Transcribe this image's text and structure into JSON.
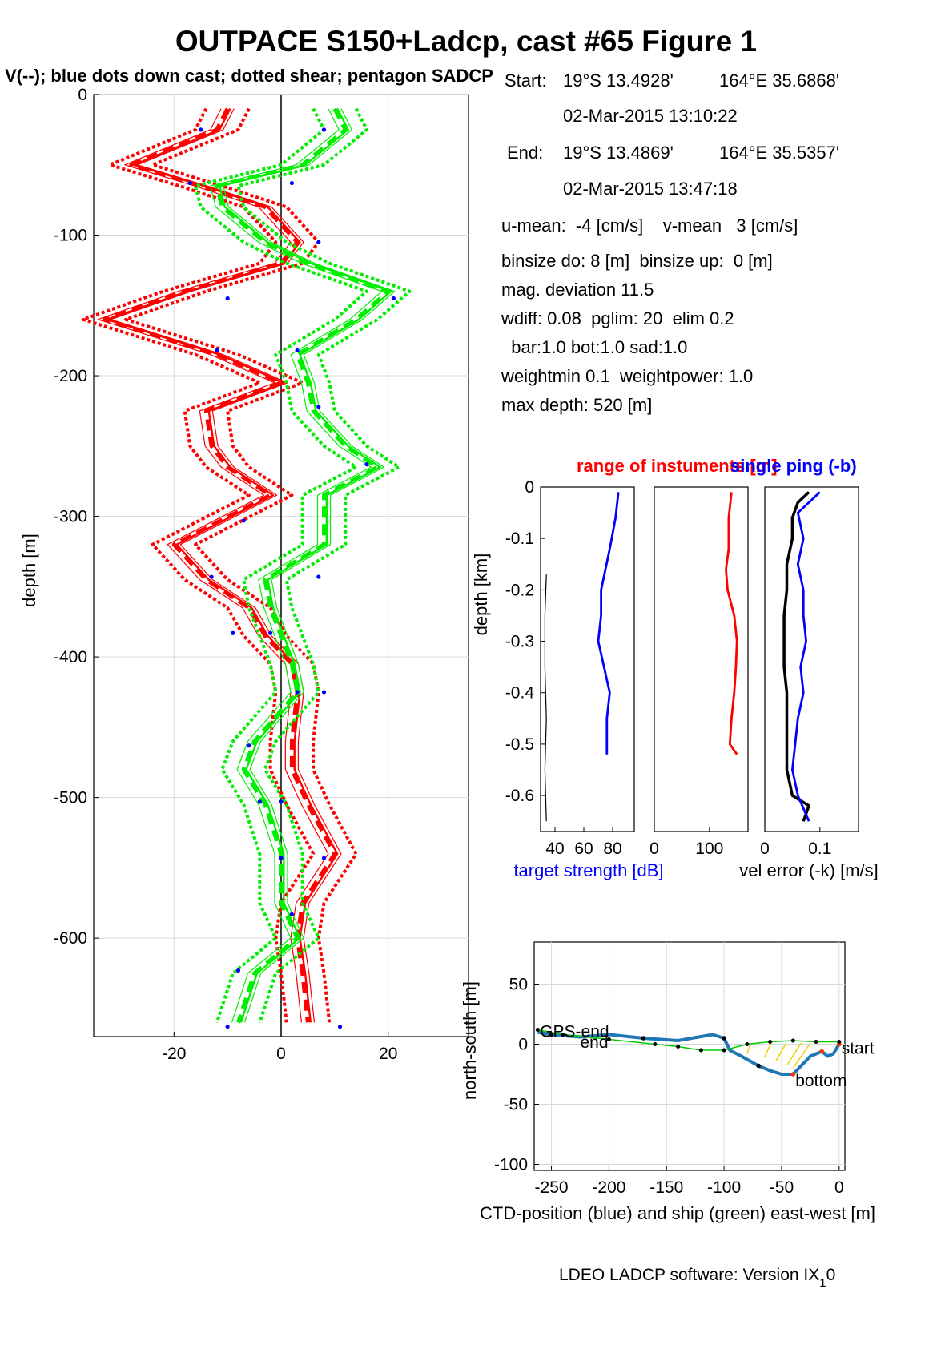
{
  "header": {
    "title": "OUTPACE S150+Ladcp, cast #65  Figure 1",
    "subtitle": "V(--); blue dots down cast; dotted shear; pentagon SADCP"
  },
  "info": {
    "start_label": "Start:",
    "start_lat": "19°S 13.4928'",
    "start_lon": "164°E 35.6868'",
    "start_time": "02-Mar-2015 13:10:22",
    "end_label": "End:",
    "end_lat": "19°S 13.4869'",
    "end_lon": "164°E 35.5357'",
    "end_time": "02-Mar-2015 13:47:18",
    "means": "u-mean:  -4 [cm/s]    v-mean   3 [cm/s]",
    "binsize": "binsize do: 8 [m]  binsize up:  0 [m]",
    "magdev": "mag. deviation 11.5",
    "wdiff": "wdiff: 0.08  pglim: 20  elim 0.2",
    "weights_bar": "  bar:1.0 bot:1.0 sad:1.0",
    "weightmin": "weightmin 0.1  weightpower: 1.0",
    "maxdepth": "max depth: 520 [m]"
  },
  "footer": {
    "text": "LDEO LADCP software: Version IX",
    "sub": "1",
    "tail": "0"
  },
  "colors": {
    "u": "#ff0000",
    "v": "#00ee00",
    "dots": "#0000ff",
    "ts": "#0000ff",
    "black": "#000000"
  },
  "chart_data": [
    {
      "type": "line",
      "id": "velocity_profile",
      "ylabel": "depth [m]",
      "xlabel": "",
      "xlim": [
        -35,
        35
      ],
      "ylim": [
        -670,
        0
      ],
      "x_ticks": [
        "-20",
        "0",
        "20"
      ],
      "y_ticks": [
        "0",
        "-100",
        "-200",
        "-300",
        "-400",
        "-500",
        "-600"
      ],
      "grid": true,
      "series": [
        {
          "color": "red",
          "depth": [
            -10,
            -25,
            -50,
            -65,
            -80,
            -105,
            -120,
            -140,
            -160,
            -185,
            -205,
            -225,
            -250,
            -265,
            -285,
            -320,
            -345,
            -365,
            -385,
            -405,
            -425,
            -460,
            -480,
            -505,
            -540,
            -575,
            -600,
            -625,
            -660
          ],
          "values": [
            -10,
            -12,
            -28,
            -15,
            -3,
            3,
            0,
            -18,
            -33,
            -12,
            0,
            -14,
            -13,
            -10,
            -2,
            -20,
            -14,
            -6,
            -3,
            2,
            3,
            2,
            2,
            5,
            10,
            4,
            3,
            4,
            5
          ]
        },
        {
          "color": "green",
          "depth": [
            -10,
            -25,
            -50,
            -65,
            -80,
            -105,
            -120,
            -140,
            -160,
            -185,
            -205,
            -225,
            -250,
            -265,
            -285,
            -320,
            -345,
            -365,
            -385,
            -405,
            -425,
            -460,
            -480,
            -505,
            -540,
            -575,
            -600,
            -625,
            -660
          ],
          "values": [
            10,
            12,
            4,
            -12,
            -11,
            -3,
            5,
            20,
            14,
            3,
            5,
            6,
            12,
            18,
            8,
            8,
            -3,
            -2,
            0,
            2,
            3,
            -5,
            -7,
            -3,
            0,
            0,
            3,
            -5,
            -8
          ]
        }
      ],
      "down_cast_dots_u": [
        [
          -15,
          -25
        ],
        [
          -17,
          -63
        ],
        [
          -10,
          -145
        ],
        [
          -12,
          -182
        ],
        [
          -7,
          -303
        ],
        [
          -13,
          -343
        ],
        [
          -9,
          -383
        ],
        [
          3,
          -425
        ],
        [
          -6,
          -463
        ],
        [
          -4,
          -503
        ],
        [
          8,
          -543
        ],
        [
          2,
          -583
        ],
        [
          -8,
          -623
        ],
        [
          11,
          -663
        ]
      ],
      "down_cast_dots_v": [
        [
          8,
          -25
        ],
        [
          2,
          -63
        ],
        [
          7,
          -105
        ],
        [
          21,
          -145
        ],
        [
          3,
          -182
        ],
        [
          7,
          -222
        ],
        [
          16,
          -263
        ],
        [
          7,
          -343
        ],
        [
          -2,
          -383
        ],
        [
          8,
          -425
        ],
        [
          0,
          -503
        ],
        [
          0,
          -543
        ],
        [
          -10,
          -663
        ]
      ]
    },
    {
      "type": "line",
      "id": "target_strength",
      "xlabel": "target strength [dB]",
      "ylabel": "depth [km]",
      "xlim": [
        30,
        95
      ],
      "ylim": [
        -0.67,
        0
      ],
      "x_ticks": [
        "40",
        "60",
        "80"
      ],
      "y_ticks": [
        "0",
        "-0.1",
        "-0.2",
        "-0.3",
        "-0.4",
        "-0.5",
        "-0.6"
      ],
      "series": [
        {
          "color": "blue",
          "depth": [
            -0.01,
            -0.06,
            -0.12,
            -0.16,
            -0.2,
            -0.25,
            -0.3,
            -0.35,
            -0.4,
            -0.45,
            -0.52
          ],
          "values": [
            84,
            82,
            78,
            75,
            72,
            72,
            70,
            74,
            78,
            76,
            76
          ]
        },
        {
          "color": "black",
          "depth": [
            -0.17,
            -0.25,
            -0.35,
            -0.45,
            -0.55,
            -0.65
          ],
          "values": [
            34,
            33,
            33,
            34,
            33,
            34
          ]
        }
      ]
    },
    {
      "type": "line",
      "id": "range_of_instruments",
      "title": "range of instuments [m]",
      "xlim": [
        0,
        170
      ],
      "ylim": [
        -0.67,
        0
      ],
      "x_ticks": [
        "0",
        "100"
      ],
      "series": [
        {
          "color": "red",
          "depth": [
            -0.01,
            -0.06,
            -0.12,
            -0.16,
            -0.2,
            -0.25,
            -0.3,
            -0.35,
            -0.4,
            -0.45,
            -0.5,
            -0.52
          ],
          "values": [
            140,
            135,
            135,
            130,
            133,
            145,
            150,
            148,
            145,
            140,
            137,
            150
          ]
        }
      ]
    },
    {
      "type": "line",
      "id": "vel_error",
      "title": "single ping (-b)",
      "xlabel": "vel error (-k) [m/s]",
      "xlim": [
        0,
        0.17
      ],
      "ylim": [
        -0.67,
        0
      ],
      "x_ticks": [
        "0",
        "0.1"
      ],
      "series": [
        {
          "color": "black",
          "depth": [
            -0.01,
            -0.03,
            -0.06,
            -0.1,
            -0.15,
            -0.2,
            -0.25,
            -0.3,
            -0.35,
            -0.4,
            -0.45,
            -0.5,
            -0.55,
            -0.6,
            -0.62,
            -0.65
          ],
          "values": [
            0.08,
            0.06,
            0.05,
            0.05,
            0.04,
            0.04,
            0.035,
            0.035,
            0.035,
            0.04,
            0.04,
            0.04,
            0.04,
            0.05,
            0.08,
            0.07
          ]
        },
        {
          "color": "blue",
          "depth": [
            -0.01,
            -0.05,
            -0.1,
            -0.15,
            -0.2,
            -0.25,
            -0.3,
            -0.35,
            -0.4,
            -0.45,
            -0.5,
            -0.55,
            -0.6,
            -0.65
          ],
          "values": [
            0.1,
            0.06,
            0.07,
            0.06,
            0.07,
            0.07,
            0.075,
            0.065,
            0.07,
            0.06,
            0.055,
            0.05,
            0.06,
            0.08
          ]
        }
      ]
    },
    {
      "type": "line",
      "id": "position",
      "xlabel": "CTD-position (blue) and ship (green) east-west [m]",
      "ylabel": "north-south [m]",
      "xlim": [
        -265,
        5
      ],
      "ylim": [
        -105,
        85
      ],
      "x_ticks": [
        "-250",
        "-200",
        "-150",
        "-100",
        "-50",
        "0"
      ],
      "y_ticks": [
        "50",
        "0",
        "-50",
        "-100"
      ],
      "series": [
        {
          "name": "CTD",
          "color": "blue",
          "x": [
            0,
            -5,
            -10,
            -15,
            -25,
            -30,
            -40,
            -50,
            -60,
            -70,
            -85,
            -95,
            -100,
            -110,
            -140,
            -170,
            -200,
            -225,
            -250,
            -262
          ],
          "y": [
            0,
            -8,
            -10,
            -6,
            -10,
            -15,
            -25,
            -25,
            -22,
            -18,
            -10,
            -5,
            5,
            8,
            3,
            5,
            8,
            6,
            8,
            10
          ]
        },
        {
          "name": "ship",
          "color": "green",
          "x": [
            0,
            -20,
            -40,
            -60,
            -80,
            -100,
            -120,
            -140,
            -160,
            -200,
            -240,
            -262
          ],
          "y": [
            2,
            2,
            3,
            2,
            0,
            -5,
            -5,
            -2,
            0,
            4,
            8,
            12
          ]
        }
      ],
      "labels": [
        "GPS-end",
        "end",
        "start",
        "bottom"
      ]
    }
  ]
}
